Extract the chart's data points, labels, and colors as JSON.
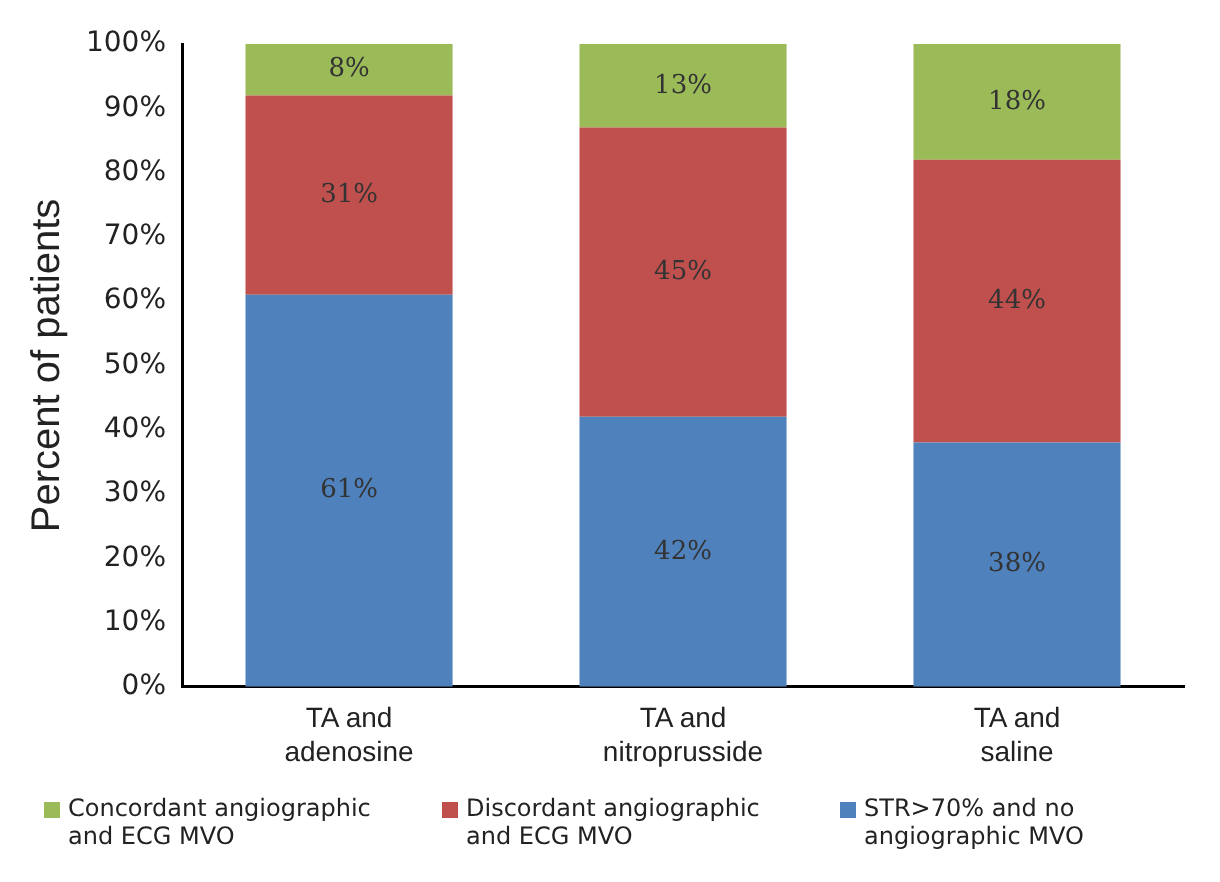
{
  "chart_data": {
    "type": "bar",
    "stacked": true,
    "ylabel": "Percent of patients",
    "categories": [
      "TA and adenosine",
      "TA and nitroprusside",
      "TA and saline"
    ],
    "series": [
      {
        "name": "STR>70% and no angiographic MVO",
        "color": "#4f81bd",
        "values": [
          61,
          42,
          38
        ],
        "value_labels": [
          "61%",
          "42%",
          "38%"
        ]
      },
      {
        "name": "Discordant angiographic and ECG MVO",
        "color": "#c0504d",
        "values": [
          31,
          45,
          44
        ],
        "value_labels": [
          "31%",
          "45%",
          "44%"
        ]
      },
      {
        "name": "Concordant angiographic and ECG MVO",
        "color": "#9bbb59",
        "values": [
          8,
          13,
          18
        ],
        "value_labels": [
          "8%",
          "13%",
          "18%"
        ]
      }
    ],
    "ylim": [
      0,
      100
    ],
    "yticks": [
      {
        "value": 0,
        "label": "0%"
      },
      {
        "value": 10,
        "label": "10%"
      },
      {
        "value": 20,
        "label": "20%"
      },
      {
        "value": 30,
        "label": "30%"
      },
      {
        "value": 40,
        "label": "40%"
      },
      {
        "value": 50,
        "label": "50%"
      },
      {
        "value": 60,
        "label": "60%"
      },
      {
        "value": 70,
        "label": "70%"
      },
      {
        "value": 80,
        "label": "80%"
      },
      {
        "value": 90,
        "label": "90%"
      },
      {
        "value": 100,
        "label": "100%"
      }
    ],
    "grid": false,
    "legend": "bottom"
  }
}
